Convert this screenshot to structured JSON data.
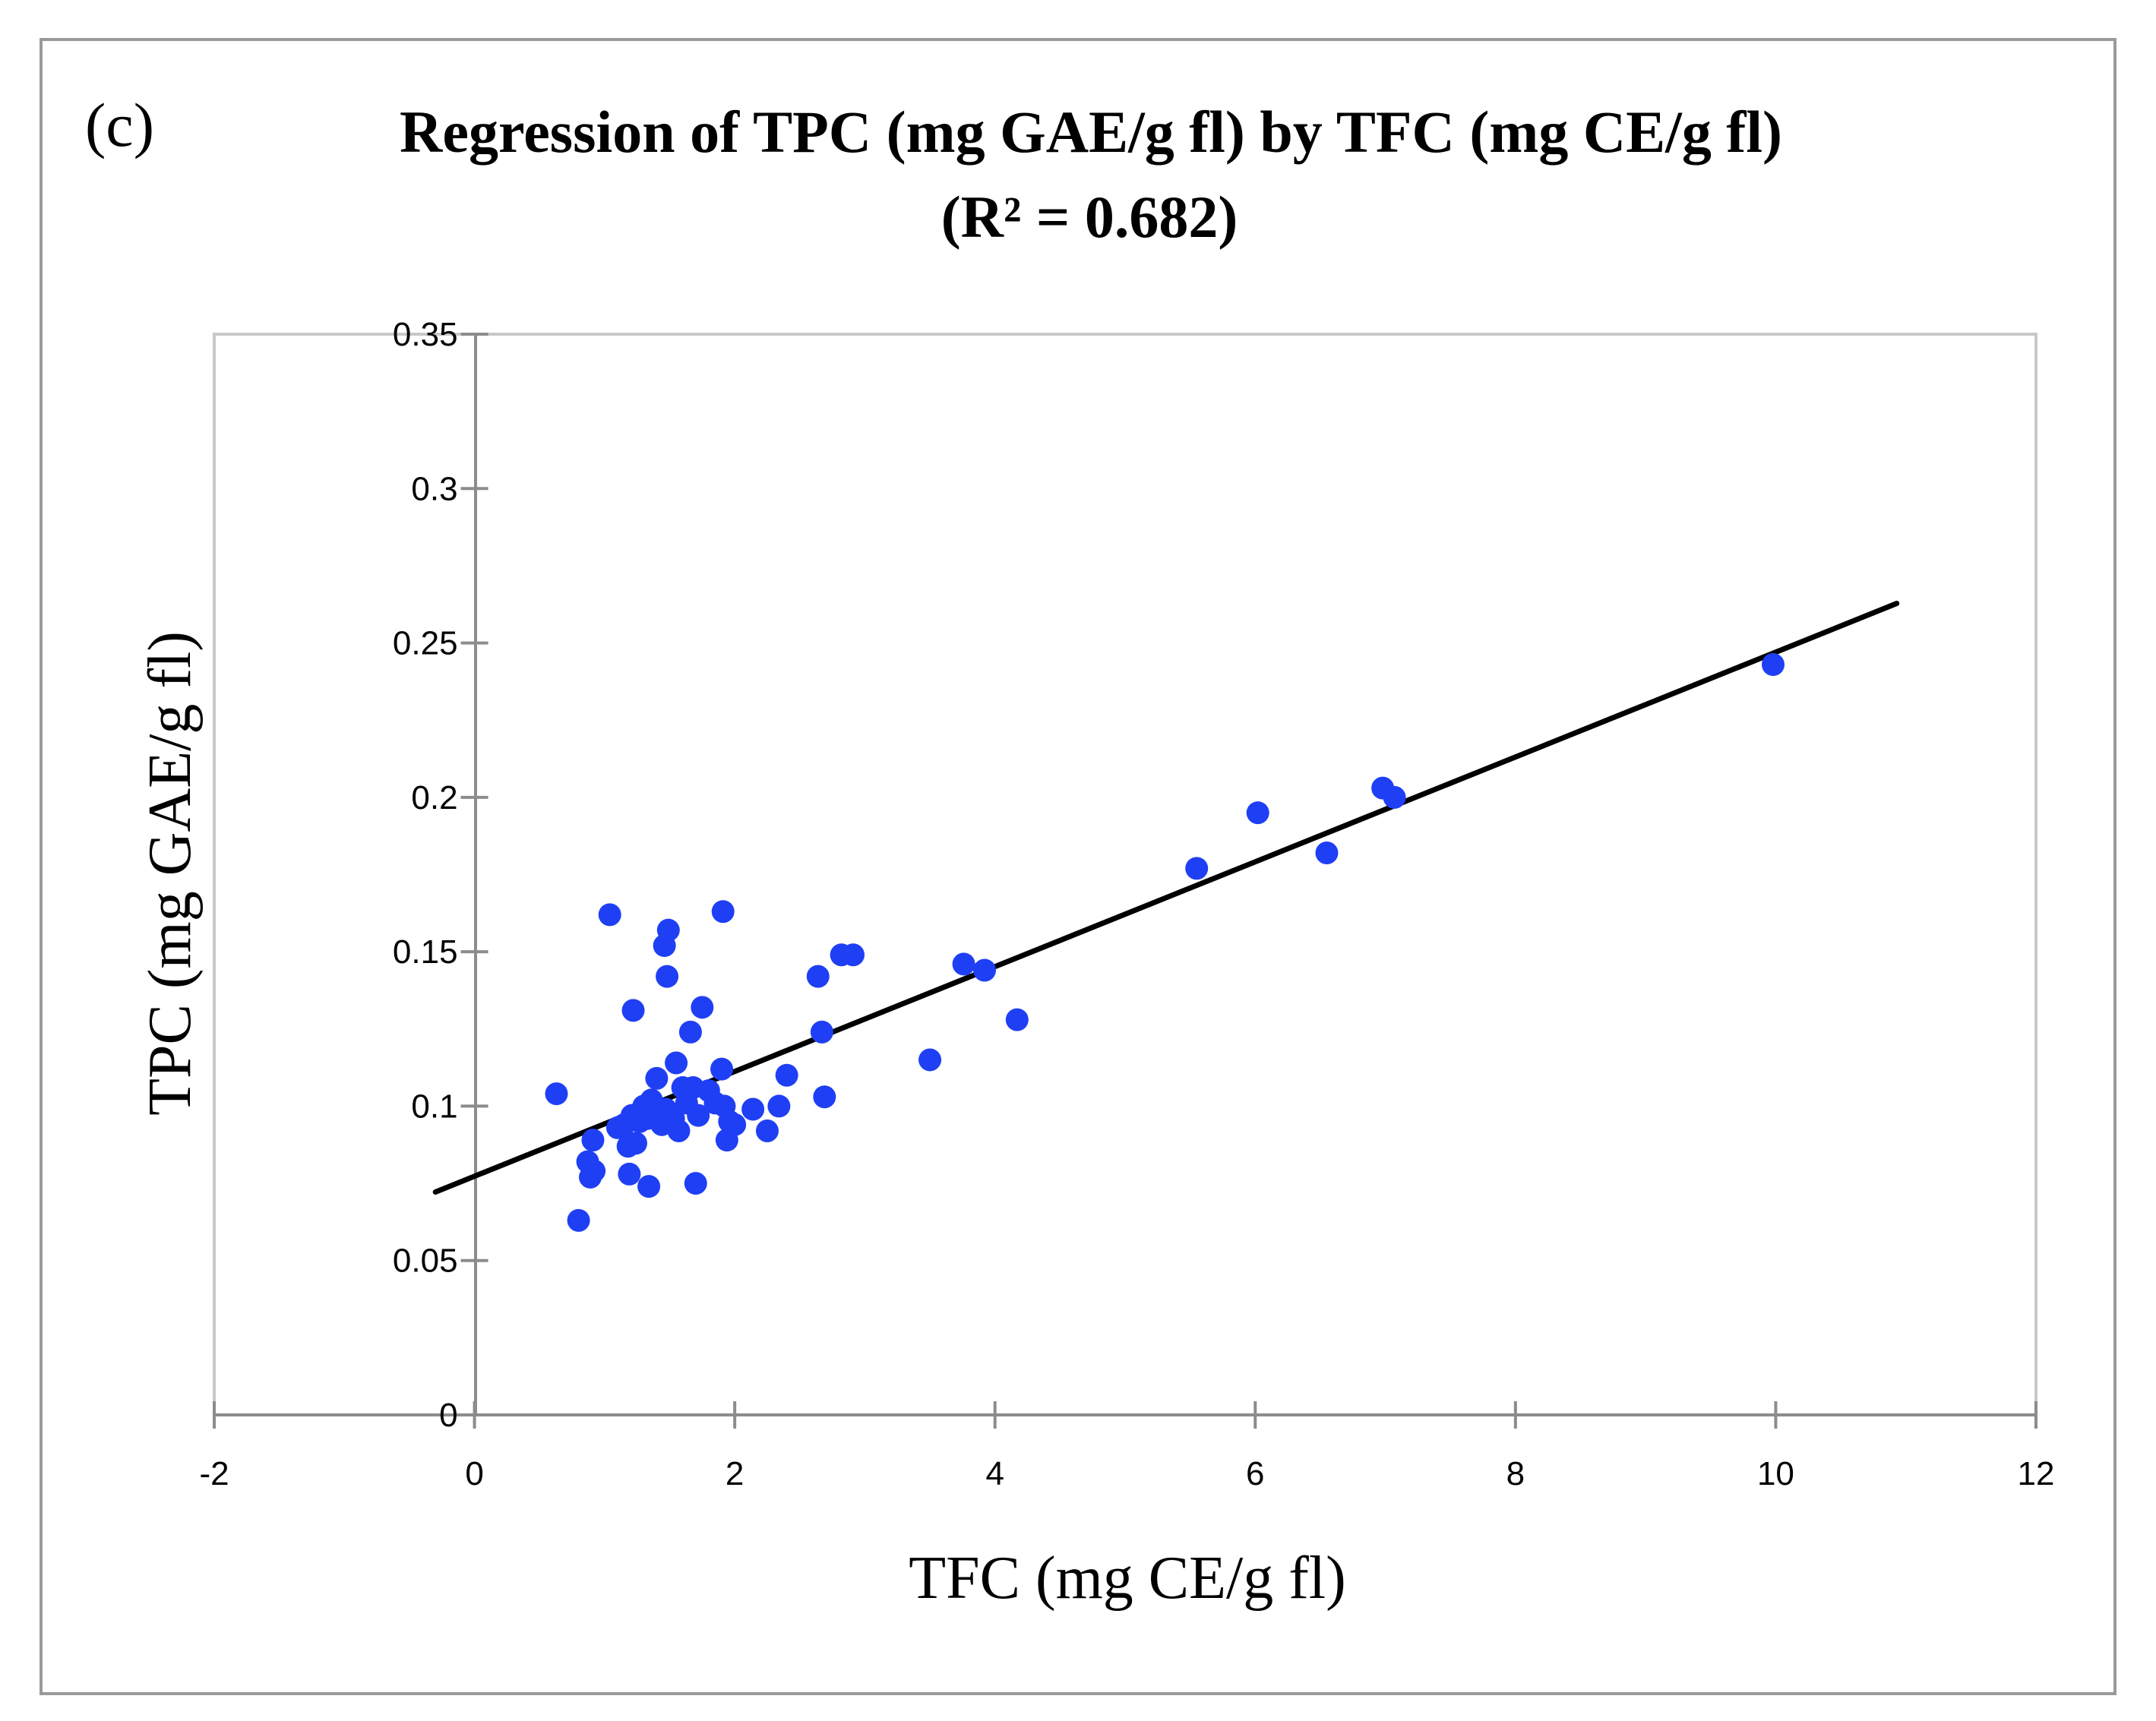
{
  "chart_data": {
    "type": "scatter",
    "panel_label": "(c)",
    "title": "Regression of TPC (mg GAE/g fl) by TFC (mg CE/g fl)",
    "subtitle": "(R² = 0.682)",
    "xlabel": "TFC (mg CE/g fl)",
    "ylabel": "TPC (mg GAE/g fl)",
    "xlim": [
      -2,
      12
    ],
    "ylim": [
      0,
      0.35
    ],
    "x_ticks": [
      -2,
      0,
      2,
      4,
      6,
      8,
      10,
      12
    ],
    "x_tick_labels": [
      "-2",
      "0",
      "2",
      "4",
      "6",
      "8",
      "10",
      "12"
    ],
    "y_ticks": [
      0,
      0.05,
      0.1,
      0.15,
      0.2,
      0.25,
      0.3,
      0.35
    ],
    "y_tick_labels": [
      "0",
      "0.05",
      "0.1",
      "0.15",
      "0.2",
      "0.25",
      "0.3",
      "0.35"
    ],
    "grid": false,
    "legend": "none",
    "marker_color": "#1f3ff5",
    "line_color": "#000000",
    "regression_line": {
      "x_start": -0.3,
      "y_start": 0.0722,
      "x_end": 10.93,
      "y_end": 0.2628
    },
    "series": [
      {
        "name": "samples",
        "points": [
          [
            0.63,
            0.104
          ],
          [
            0.8,
            0.063
          ],
          [
            0.87,
            0.082
          ],
          [
            0.89,
            0.077
          ],
          [
            0.91,
            0.089
          ],
          [
            0.92,
            0.079
          ],
          [
            1.04,
            0.162
          ],
          [
            1.1,
            0.093
          ],
          [
            1.15,
            0.094
          ],
          [
            1.18,
            0.087
          ],
          [
            1.19,
            0.078
          ],
          [
            1.21,
            0.097
          ],
          [
            1.22,
            0.131
          ],
          [
            1.24,
            0.088
          ],
          [
            1.27,
            0.095
          ],
          [
            1.3,
            0.1
          ],
          [
            1.33,
            0.096
          ],
          [
            1.34,
            0.074
          ],
          [
            1.36,
            0.102
          ],
          [
            1.38,
            0.1
          ],
          [
            1.4,
            0.109
          ],
          [
            1.42,
            0.098
          ],
          [
            1.44,
            0.094
          ],
          [
            1.46,
            0.152
          ],
          [
            1.47,
            0.099
          ],
          [
            1.48,
            0.142
          ],
          [
            1.49,
            0.157
          ],
          [
            1.51,
            0.097
          ],
          [
            1.53,
            0.096
          ],
          [
            1.55,
            0.114
          ],
          [
            1.57,
            0.092
          ],
          [
            1.6,
            0.106
          ],
          [
            1.63,
            0.101
          ],
          [
            1.66,
            0.124
          ],
          [
            1.68,
            0.106
          ],
          [
            1.7,
            0.075
          ],
          [
            1.72,
            0.097
          ],
          [
            1.75,
            0.132
          ],
          [
            1.8,
            0.105
          ],
          [
            1.85,
            0.101
          ],
          [
            1.9,
            0.112
          ],
          [
            1.91,
            0.163
          ],
          [
            1.92,
            0.1
          ],
          [
            1.94,
            0.089
          ],
          [
            1.96,
            0.095
          ],
          [
            2.0,
            0.094
          ],
          [
            2.14,
            0.099
          ],
          [
            2.25,
            0.092
          ],
          [
            2.34,
            0.1
          ],
          [
            2.4,
            0.11
          ],
          [
            2.64,
            0.142
          ],
          [
            2.67,
            0.124
          ],
          [
            2.69,
            0.103
          ],
          [
            2.82,
            0.149
          ],
          [
            2.91,
            0.149
          ],
          [
            3.5,
            0.115
          ],
          [
            3.76,
            0.146
          ],
          [
            3.92,
            0.144
          ],
          [
            4.17,
            0.128
          ],
          [
            5.55,
            0.177
          ],
          [
            6.02,
            0.195
          ],
          [
            6.55,
            0.182
          ],
          [
            6.98,
            0.203
          ],
          [
            7.07,
            0.2
          ],
          [
            9.98,
            0.243
          ]
        ]
      }
    ]
  }
}
